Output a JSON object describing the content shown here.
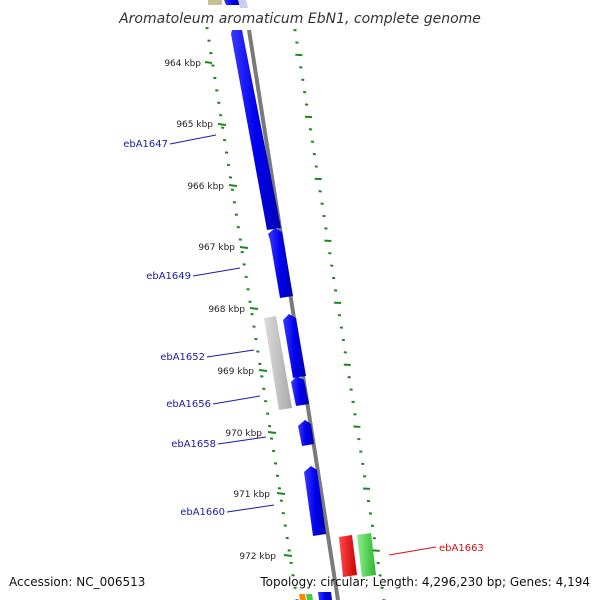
{
  "title": "Aromatoleum aromaticum EbN1, complete genome",
  "footer": {
    "accession": "Accession: NC_006513",
    "summary": "Topology: circular; Length: 4,296,230 bp; Genes: 4,194"
  },
  "kbp_ticks": [
    "964 kbp",
    "965 kbp",
    "966 kbp",
    "967 kbp",
    "968 kbp",
    "969 kbp",
    "970 kbp",
    "971 kbp",
    "972 kbp"
  ],
  "gene_labels": [
    {
      "name": "ebA1647",
      "color": "#1a1aaa"
    },
    {
      "name": "ebA1649",
      "color": "#1a1aaa"
    },
    {
      "name": "ebA1652",
      "color": "#1a1aaa"
    },
    {
      "name": "ebA1656",
      "color": "#1a1aaa"
    },
    {
      "name": "ebA1658",
      "color": "#1a1aaa"
    },
    {
      "name": "ebA1660",
      "color": "#1a1aaa"
    },
    {
      "name": "ebA1663",
      "color": "#dd1111"
    }
  ],
  "colors": {
    "cds": "#0000ee",
    "other_feature": "#bbbbbb",
    "backbone": "#888888",
    "ticks": "#1a8a1a",
    "highlight_red": "#ee0000",
    "highlight_green": "#44cc44"
  }
}
